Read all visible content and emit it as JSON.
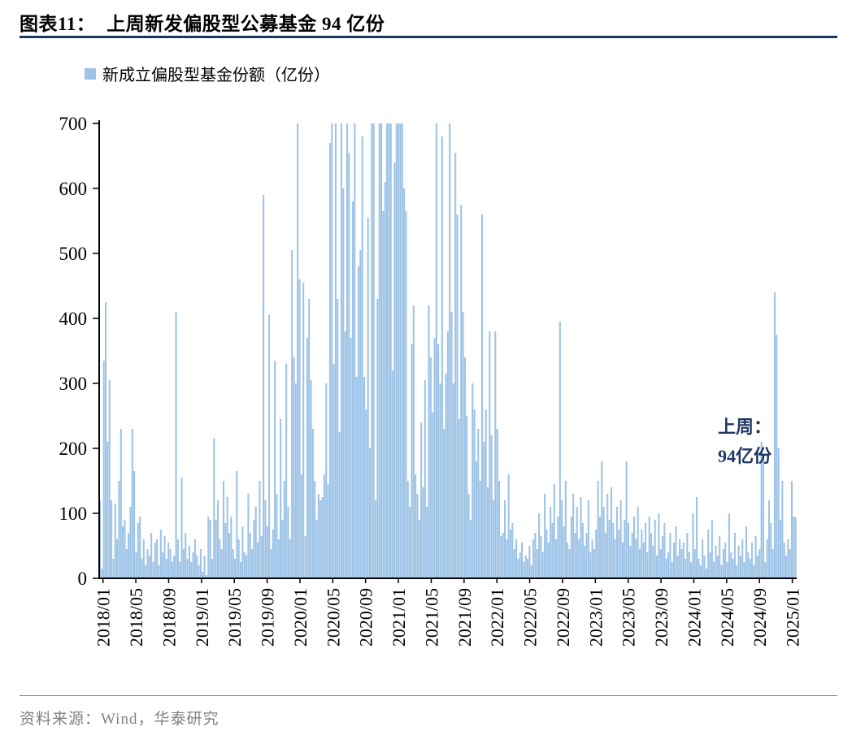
{
  "title": {
    "prefix": "图表11：",
    "text": "上周新发偏股型公募基金 94 亿份"
  },
  "legend": {
    "label": "新成立偏股型基金份额（亿份）"
  },
  "annotation": {
    "line1": "上周：",
    "line2": "94亿份"
  },
  "source": {
    "text": "资料来源：Wind，华泰研究"
  },
  "colors": {
    "bar": "#9DC3E6",
    "axis": "#000000",
    "title_rule": "#17375E",
    "annotation": "#1F3864",
    "source_text": "#808080"
  },
  "chart_data": {
    "type": "bar",
    "title": "新成立偏股型基金份额（亿份）",
    "xlabel": "",
    "ylabel": "",
    "ylim": [
      0,
      700
    ],
    "y_ticks": [
      0,
      100,
      200,
      300,
      400,
      500,
      600,
      700
    ],
    "grid": false,
    "legend_position": "top-left",
    "x_unit": "week",
    "x_range_months": 85,
    "x_tick_labels": [
      "2018/01",
      "2018/05",
      "2018/09",
      "2019/01",
      "2019/05",
      "2019/09",
      "2020/01",
      "2020/05",
      "2020/09",
      "2021/01",
      "2021/05",
      "2021/09",
      "2022/01",
      "2022/05",
      "2022/09",
      "2023/01",
      "2023/05",
      "2023/09",
      "2024/01",
      "2024/05",
      "2024/09",
      "2025/01"
    ],
    "last_value_label": 94,
    "values": [
      120,
      15,
      335,
      425,
      210,
      305,
      120,
      30,
      115,
      60,
      150,
      230,
      80,
      90,
      45,
      70,
      110,
      230,
      165,
      40,
      85,
      95,
      30,
      60,
      20,
      45,
      35,
      70,
      25,
      55,
      60,
      20,
      75,
      40,
      65,
      30,
      55,
      45,
      25,
      35,
      410,
      60,
      25,
      155,
      45,
      70,
      30,
      50,
      25,
      40,
      60,
      35,
      20,
      45,
      10,
      35,
      5,
      95,
      90,
      30,
      215,
      90,
      120,
      60,
      45,
      150,
      85,
      125,
      70,
      95,
      45,
      30,
      165,
      60,
      25,
      80,
      40,
      35,
      130,
      70,
      45,
      90,
      110,
      55,
      150,
      65,
      590,
      120,
      80,
      405,
      45,
      75,
      335,
      130,
      60,
      245,
      90,
      150,
      330,
      110,
      60,
      505,
      340,
      300,
      700,
      460,
      160,
      455,
      65,
      370,
      430,
      305,
      230,
      150,
      90,
      130,
      120,
      125,
      160,
      300,
      145,
      670,
      700,
      330,
      700,
      430,
      225,
      700,
      600,
      380,
      700,
      655,
      370,
      580,
      700,
      310,
      480,
      505,
      680,
      310,
      260,
      555,
      200,
      700,
      700,
      120,
      430,
      700,
      700,
      565,
      610,
      700,
      700,
      700,
      320,
      640,
      700,
      700,
      700,
      700,
      600,
      565,
      150,
      110,
      360,
      420,
      160,
      130,
      90,
      240,
      140,
      305,
      110,
      420,
      340,
      255,
      370,
      700,
      360,
      300,
      680,
      230,
      315,
      380,
      700,
      410,
      300,
      655,
      560,
      245,
      575,
      410,
      340,
      250,
      130,
      90,
      300,
      260,
      180,
      230,
      150,
      560,
      210,
      260,
      140,
      380,
      220,
      120,
      380,
      230,
      150,
      65,
      70,
      120,
      60,
      160,
      75,
      85,
      45,
      60,
      30,
      40,
      55,
      25,
      35,
      30,
      50,
      20,
      60,
      70,
      45,
      100,
      65,
      40,
      130,
      75,
      55,
      110,
      85,
      145,
      60,
      95,
      395,
      120,
      80,
      150,
      55,
      45,
      95,
      130,
      70,
      110,
      60,
      125,
      85,
      50,
      70,
      120,
      40,
      60,
      45,
      75,
      150,
      95,
      180,
      110,
      70,
      130,
      90,
      140,
      85,
      60,
      110,
      75,
      120,
      55,
      90,
      180,
      85,
      50,
      70,
      95,
      60,
      110,
      45,
      75,
      55,
      85,
      40,
      95,
      70,
      50,
      90,
      35,
      100,
      45,
      65,
      85,
      30,
      40,
      70,
      25,
      55,
      80,
      35,
      60,
      45,
      55,
      30,
      70,
      40,
      25,
      100,
      45,
      125,
      30,
      20,
      60,
      35,
      15,
      75,
      40,
      90,
      25,
      50,
      35,
      65,
      20,
      45,
      55,
      25,
      100,
      40,
      30,
      70,
      20,
      50,
      35,
      60,
      25,
      80,
      40,
      30,
      55,
      20,
      65,
      35,
      45,
      210,
      190,
      25,
      60,
      120,
      85,
      45,
      440,
      375,
      200,
      90,
      150,
      55,
      35,
      60,
      45,
      150,
      95,
      94
    ]
  }
}
